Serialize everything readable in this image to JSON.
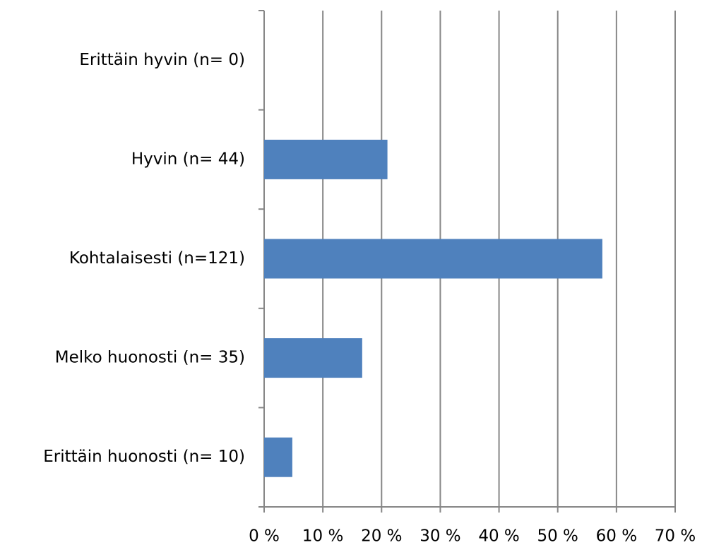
{
  "chart_data": {
    "type": "barh",
    "categories": [
      "Erittäin hyvin (n= 0)",
      "Hyvin (n= 44)",
      "Kohtalaisesti (n=121)",
      "Melko huonosti (n= 35)",
      "Erittäin huonosti (n= 10)"
    ],
    "values": [
      0,
      21,
      57.6,
      16.7,
      4.8
    ],
    "color": "#4f81bd",
    "xlim": [
      0,
      70
    ],
    "xticks": [
      {
        "value": 0,
        "label": "0 %"
      },
      {
        "value": 10,
        "label": "10 %"
      },
      {
        "value": 20,
        "label": "20 %"
      },
      {
        "value": 30,
        "label": "30 %"
      },
      {
        "value": 40,
        "label": "40 %"
      },
      {
        "value": 50,
        "label": "50 %"
      },
      {
        "value": 60,
        "label": "60 %"
      },
      {
        "value": 70,
        "label": "70 %"
      }
    ],
    "grid": true
  }
}
